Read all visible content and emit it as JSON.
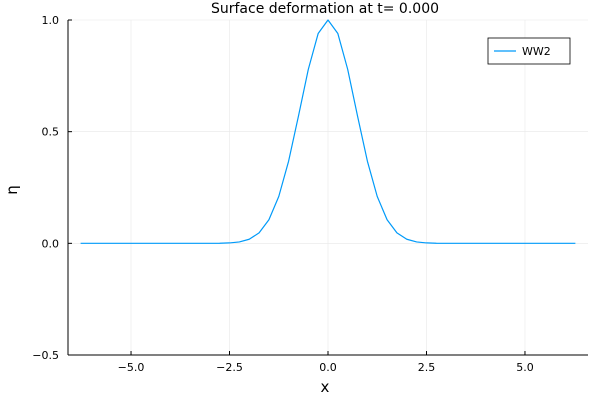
{
  "chart_data": {
    "type": "line",
    "title": "Surface deformation at t=   0.000",
    "xlabel": "x",
    "ylabel": "η",
    "xlim": [
      -6.6,
      6.6
    ],
    "ylim": [
      -0.5,
      1.0
    ],
    "xticks": [
      -5.0,
      -2.5,
      0.0,
      2.5,
      5.0
    ],
    "xtick_labels": [
      "−5.0",
      "−2.5",
      "0.0",
      "2.5",
      "5.0"
    ],
    "yticks": [
      -0.5,
      0.0,
      0.5,
      1.0
    ],
    "ytick_labels": [
      "−0.5",
      "0.0",
      "0.5",
      "1.0"
    ],
    "grid": true,
    "legend_position": "top-right",
    "series": [
      {
        "name": "WW2",
        "color": "#009af9",
        "points": [
          [
            -6.28,
            0.0
          ],
          [
            -5.5,
            0.0
          ],
          [
            -5.0,
            0.0
          ],
          [
            -4.5,
            0.0
          ],
          [
            -4.0,
            0.0
          ],
          [
            -3.5,
            0.0
          ],
          [
            -3.0,
            0.0001
          ],
          [
            -2.75,
            0.0005
          ],
          [
            -2.5,
            0.0019
          ],
          [
            -2.25,
            0.0063
          ],
          [
            -2.0,
            0.0183
          ],
          [
            -1.75,
            0.0468
          ],
          [
            -1.5,
            0.1054
          ],
          [
            -1.25,
            0.2096
          ],
          [
            -1.0,
            0.3679
          ],
          [
            -0.75,
            0.5698
          ],
          [
            -0.5,
            0.7788
          ],
          [
            -0.25,
            0.9394
          ],
          [
            0.0,
            1.0
          ],
          [
            0.25,
            0.9394
          ],
          [
            0.5,
            0.7788
          ],
          [
            0.75,
            0.5698
          ],
          [
            1.0,
            0.3679
          ],
          [
            1.25,
            0.2096
          ],
          [
            1.5,
            0.1054
          ],
          [
            1.75,
            0.0468
          ],
          [
            2.0,
            0.0183
          ],
          [
            2.25,
            0.0063
          ],
          [
            2.5,
            0.0019
          ],
          [
            2.75,
            0.0005
          ],
          [
            3.0,
            0.0001
          ],
          [
            3.5,
            0.0
          ],
          [
            4.0,
            0.0
          ],
          [
            4.5,
            0.0
          ],
          [
            5.0,
            0.0
          ],
          [
            5.5,
            0.0
          ],
          [
            6.28,
            0.0
          ]
        ]
      }
    ]
  }
}
